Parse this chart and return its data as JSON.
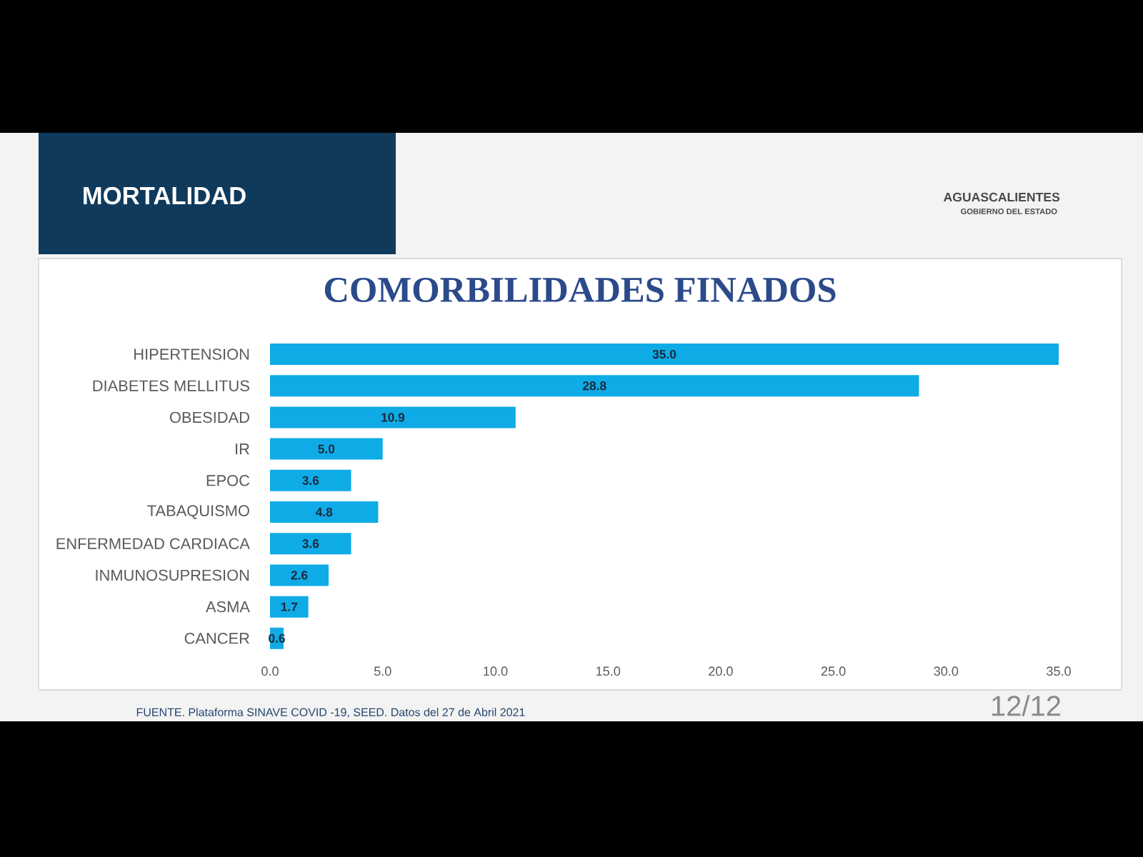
{
  "chart_data": {
    "type": "bar",
    "orientation": "horizontal",
    "title": "COMORBILIDADES FINADOS",
    "categories": [
      "HIPERTENSION",
      "DIABETES MELLITUS",
      "OBESIDAD",
      "IR",
      "EPOC",
      "TABAQUISMO",
      "ENFERMEDAD CARDIACA",
      "INMUNOSUPRESION",
      "ASMA",
      "CANCER"
    ],
    "values": [
      35.0,
      28.8,
      10.9,
      5.0,
      3.6,
      4.8,
      3.6,
      2.6,
      1.7,
      0.6
    ],
    "value_labels": [
      "35.0",
      "28.8",
      "10.9",
      "5.0",
      "3.6",
      "4.8",
      "3.6",
      "2.6",
      "1.7",
      "0.6"
    ],
    "color": "#0fabe6",
    "xlim": [
      0,
      35
    ],
    "xticks": [
      {
        "value": 0,
        "label": "0.0"
      },
      {
        "value": 5,
        "label": "5.0"
      },
      {
        "value": 10,
        "label": "10.0"
      },
      {
        "value": 15,
        "label": "15.0"
      },
      {
        "value": 20,
        "label": "20.0"
      },
      {
        "value": 25,
        "label": "25.0"
      },
      {
        "value": 30,
        "label": "30.0"
      },
      {
        "value": 35,
        "label": "35.0"
      }
    ],
    "annotations": [
      "MORTALIDAD",
      "AGUASCALIENTES",
      "GOBIERNO DEL ESTADO",
      "FUENTE. Plataforma SINAVE COVID -19, SEED. Datos del 27 de Abril 2021",
      "12/12"
    ]
  }
}
